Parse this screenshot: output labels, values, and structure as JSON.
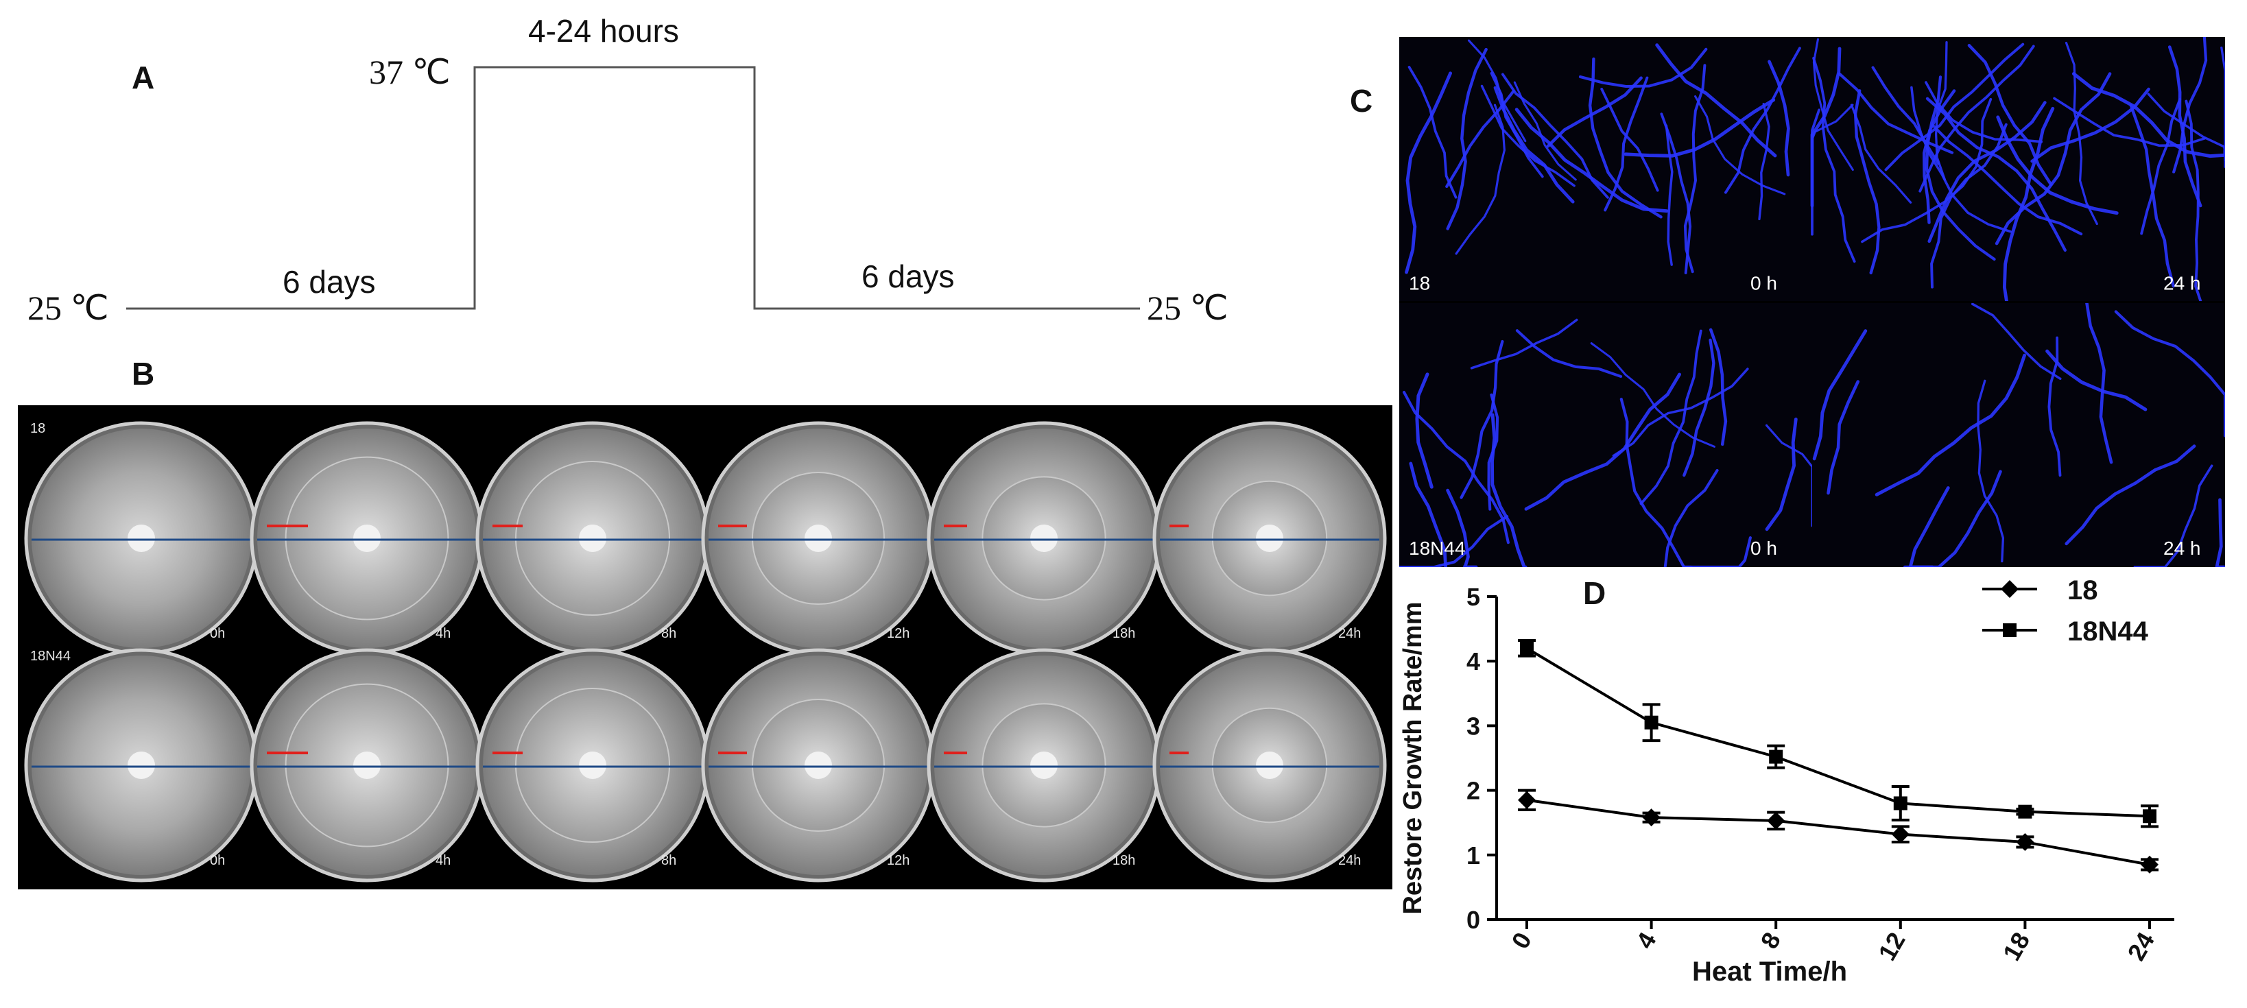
{
  "panels": {
    "a": "A",
    "b": "B",
    "c": "C",
    "d": "D"
  },
  "protocol": {
    "start_temp": "25 ℃",
    "high_temp": "37 ℃",
    "end_temp": "25 ℃",
    "before_label": "6 days",
    "heat_label": "4-24 hours",
    "after_label": "6 days"
  },
  "plates": {
    "rows": [
      {
        "strain": "18",
        "times": [
          "0h",
          "4h",
          "8h",
          "12h",
          "18h",
          "24h"
        ]
      },
      {
        "strain": "18N44",
        "times": [
          "0h",
          "4h",
          "8h",
          "12h",
          "18h",
          "24h"
        ]
      }
    ],
    "colors": {
      "background": "#000000",
      "mark": "#e0201c",
      "line": "#1f4a86"
    }
  },
  "microscopy": {
    "rows": [
      {
        "strain": "18",
        "left_time": "0 h",
        "right_time": "24 h"
      },
      {
        "strain": "18N44",
        "left_time": "0 h",
        "right_time": "24 h"
      }
    ],
    "hyphae_color": "#2a35ff"
  },
  "chart_data": {
    "type": "line",
    "xlabel": "Heat Time/h",
    "ylabel": "Restore Growth Rate/mm",
    "categories": [
      "0",
      "4",
      "8",
      "12",
      "18",
      "24"
    ],
    "ylim": [
      0,
      5
    ],
    "yticks": [
      "0",
      "1",
      "2",
      "3",
      "4",
      "5"
    ],
    "legend_position": "top-right",
    "series": [
      {
        "name": "18",
        "marker": "diamond",
        "values": [
          1.85,
          1.58,
          1.53,
          1.32,
          1.2,
          0.85
        ],
        "errors": [
          0.15,
          0.07,
          0.13,
          0.12,
          0.08,
          0.08
        ]
      },
      {
        "name": "18N44",
        "marker": "square",
        "values": [
          4.2,
          3.05,
          2.52,
          1.8,
          1.67,
          1.6
        ],
        "errors": [
          0.12,
          0.28,
          0.17,
          0.26,
          0.04,
          0.16
        ]
      }
    ],
    "grid": false
  }
}
